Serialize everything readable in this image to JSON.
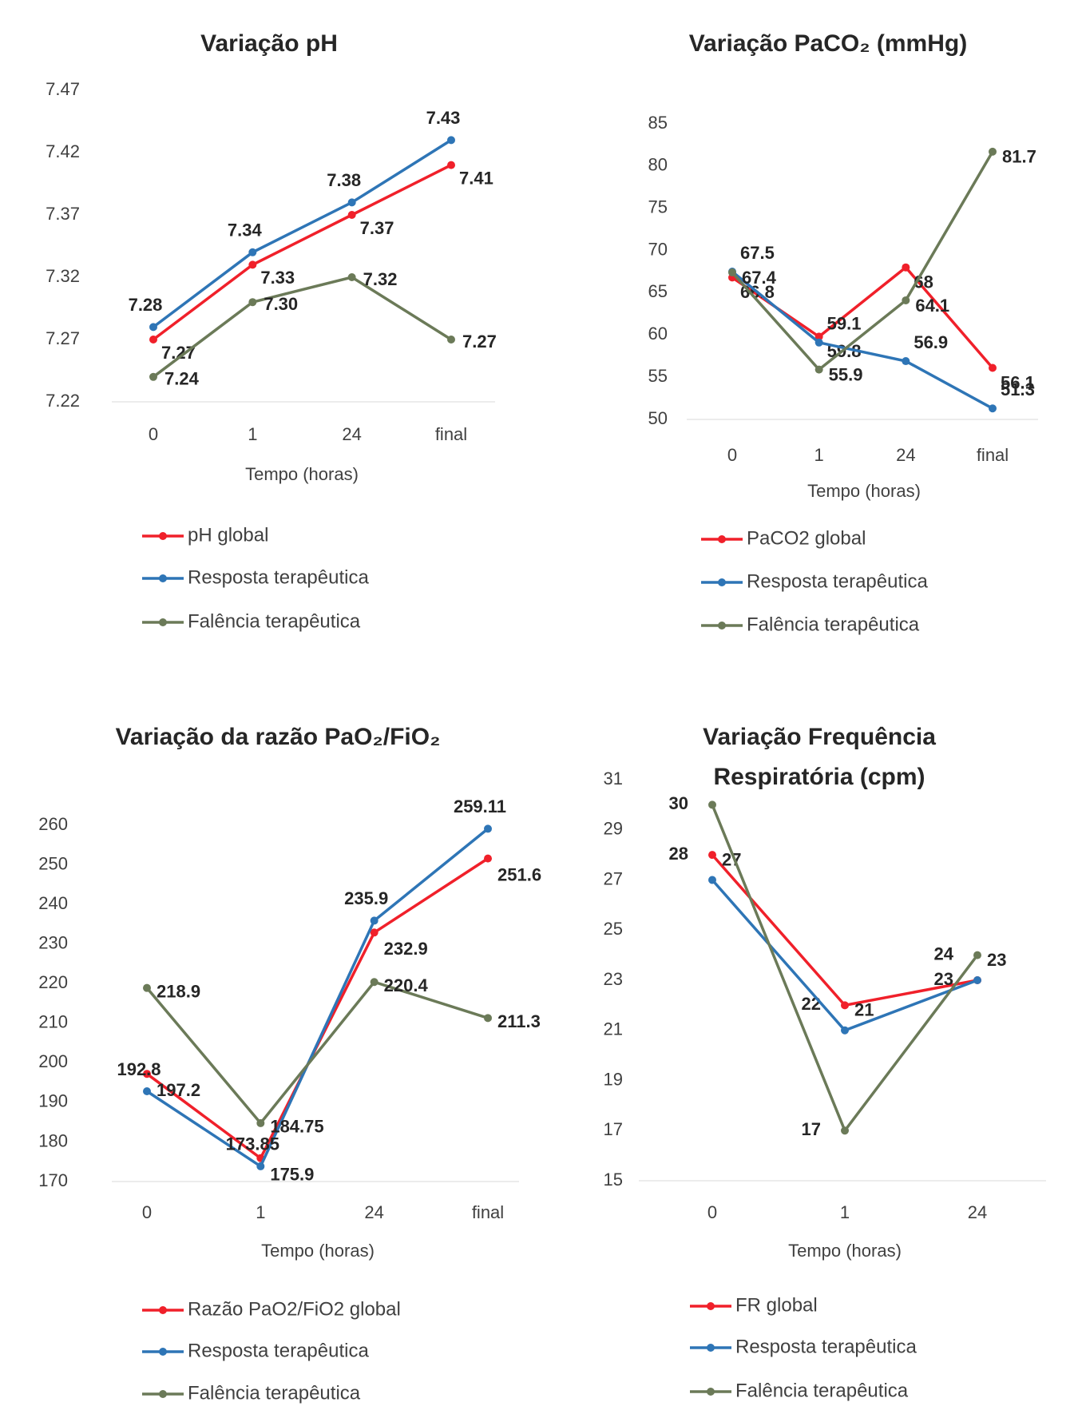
{
  "chart_data": [
    {
      "type": "line",
      "title": "Variação pH",
      "x_label": "Tempo (horas)",
      "categories": [
        "0",
        "1",
        "24",
        "final"
      ],
      "ylim": [
        7.22,
        7.47
      ],
      "yticks": [
        7.22,
        7.27,
        7.32,
        7.37,
        7.42,
        7.47
      ],
      "grid": false,
      "series": [
        {
          "name": "pH global",
          "color": "#f0202a",
          "values": [
            7.27,
            7.33,
            7.37,
            7.41
          ],
          "value_labels": [
            "7.27",
            "7.33",
            "7.37",
            "7.41"
          ]
        },
        {
          "name": "Resposta terapêutica",
          "color": "#2e75b6",
          "values": [
            7.28,
            7.34,
            7.38,
            7.43
          ],
          "value_labels": [
            "7.28",
            "7.34",
            "7.38",
            "7.43"
          ]
        },
        {
          "name": "Falência terapêutica",
          "color": "#6b7a58",
          "values": [
            7.24,
            7.3,
            7.32,
            7.27
          ],
          "value_labels": [
            "7.24",
            "7.30",
            "7.32",
            "7.27"
          ]
        }
      ]
    },
    {
      "type": "line",
      "title": "Variação PaCO₂ (mmHg)",
      "x_label": "Tempo (horas)",
      "categories": [
        "0",
        "1",
        "24",
        "final"
      ],
      "ylim": [
        50,
        85
      ],
      "yticks": [
        50,
        55,
        60,
        65,
        70,
        75,
        80,
        85
      ],
      "grid": false,
      "series": [
        {
          "name": "PaCO2 global",
          "color": "#f0202a",
          "values": [
            66.8,
            59.8,
            68,
            56.1
          ]
        },
        {
          "name": "Resposta terapêutica",
          "color": "#2e75b6",
          "values": [
            67.5,
            59.1,
            56.9,
            51.3
          ]
        },
        {
          "name": "Falência terapêutica",
          "color": "#6b7a58",
          "values": [
            67.4,
            55.9,
            64.1,
            81.7
          ]
        }
      ]
    },
    {
      "type": "line",
      "title": "Variação da razão PaO₂/FiO₂",
      "x_label": "Tempo (horas)",
      "categories": [
        "0",
        "1",
        "24",
        "final"
      ],
      "ylim": [
        170,
        260
      ],
      "yticks": [
        170,
        180,
        190,
        200,
        210,
        220,
        230,
        240,
        250,
        260
      ],
      "grid": false,
      "series": [
        {
          "name": "Razão PaO2/FiO2 global",
          "color": "#f0202a",
          "values": [
            197.2,
            175.9,
            232.9,
            251.6
          ]
        },
        {
          "name": "Resposta terapêutica",
          "color": "#2e75b6",
          "values": [
            192.8,
            173.85,
            235.9,
            259.11
          ]
        },
        {
          "name": "Falência terapêutica",
          "color": "#6b7a58",
          "values": [
            218.9,
            184.75,
            220.4,
            211.3
          ]
        }
      ]
    },
    {
      "type": "line",
      "title": "Variação Frequência Respiratória (cpm)",
      "x_label": "Tempo (horas)",
      "categories": [
        "0",
        "1",
        "24"
      ],
      "ylim": [
        15,
        31
      ],
      "yticks": [
        15,
        17,
        19,
        21,
        23,
        25,
        27,
        29,
        31
      ],
      "grid": false,
      "series": [
        {
          "name": "FR global",
          "color": "#f0202a",
          "values": [
            28,
            22,
            23
          ]
        },
        {
          "name": "Resposta terapêutica",
          "color": "#2e75b6",
          "values": [
            27,
            21,
            23
          ]
        },
        {
          "name": "Falência terapêutica",
          "color": "#6b7a58",
          "values": [
            30,
            17,
            24
          ]
        }
      ]
    }
  ]
}
